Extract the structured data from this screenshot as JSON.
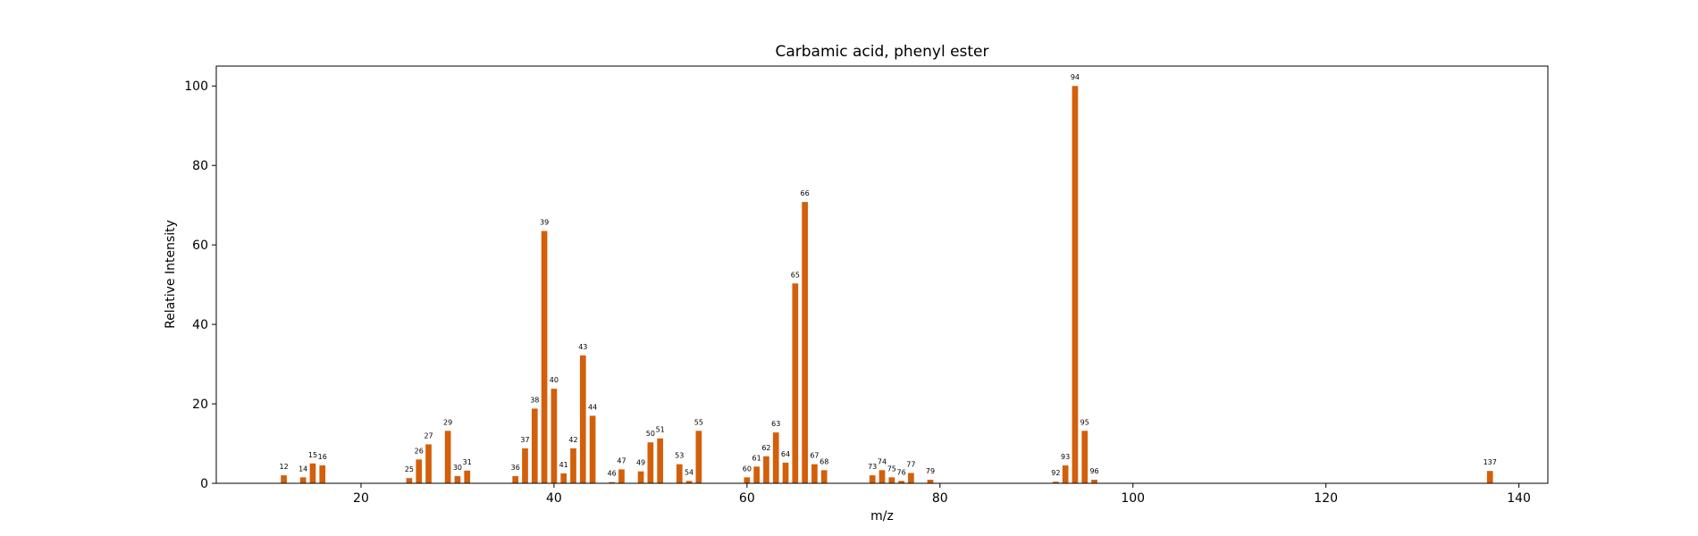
{
  "chart_data": {
    "type": "bar",
    "title": "Carbamic acid, phenyl ester",
    "xlabel": "m/z",
    "ylabel": "Relative Intensity",
    "xlim": [
      5,
      143
    ],
    "ylim": [
      0,
      105
    ],
    "xticks": [
      20,
      40,
      60,
      80,
      100,
      120,
      140
    ],
    "yticks": [
      0,
      20,
      40,
      60,
      80,
      100
    ],
    "grid": false,
    "bar_color": "#d35f0b",
    "x": [
      12,
      14,
      15,
      16,
      25,
      26,
      27,
      29,
      30,
      31,
      36,
      37,
      38,
      39,
      40,
      41,
      42,
      43,
      44,
      46,
      47,
      49,
      50,
      51,
      53,
      54,
      55,
      60,
      61,
      62,
      63,
      64,
      65,
      66,
      67,
      68,
      73,
      74,
      75,
      76,
      77,
      79,
      92,
      93,
      94,
      95,
      96,
      137
    ],
    "values": [
      2.0,
      1.5,
      5.0,
      4.5,
      1.3,
      6.0,
      9.8,
      13.2,
      1.8,
      3.2,
      1.8,
      8.8,
      18.8,
      63.5,
      23.8,
      2.5,
      8.8,
      32.2,
      17.0,
      0.3,
      3.5,
      3.0,
      10.3,
      11.3,
      4.8,
      0.6,
      13.2,
      1.5,
      4.2,
      6.8,
      12.8,
      5.2,
      50.3,
      70.8,
      4.8,
      3.3,
      2.0,
      3.3,
      1.5,
      0.6,
      2.6,
      0.9,
      0.4,
      4.5,
      100.0,
      13.2,
      0.9,
      3.1
    ]
  }
}
